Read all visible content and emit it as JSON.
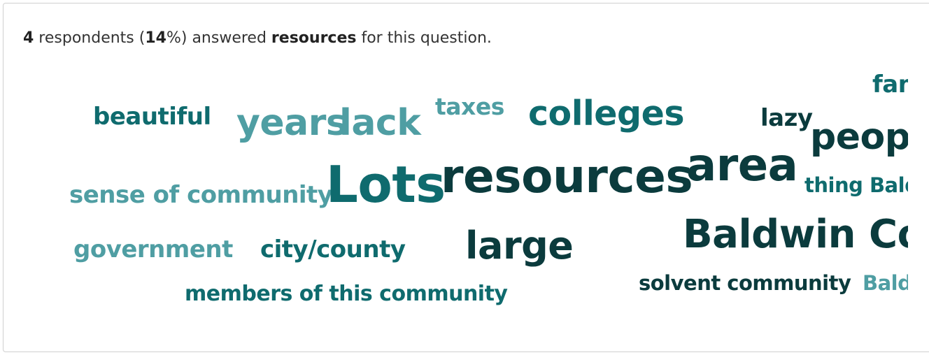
{
  "summary": {
    "count": "4",
    "text_respondents": " respondents (",
    "percent": "14",
    "text_answered": "%) answered ",
    "term": "resources",
    "text_tail": " for this question."
  },
  "colors": {
    "dark": "#0b3b3d",
    "mid": "#0f6b6e",
    "light": "#4f9ea3"
  },
  "cloud_words": [
    "fam",
    "beautiful",
    "years",
    "lack",
    "taxes",
    "colleges",
    "lazy",
    "peop",
    "area",
    "sense of community",
    "Lots",
    "resources",
    "thing Bald",
    "Baldwin Cou",
    "government",
    "city/county",
    "large",
    "solvent community",
    "Bald",
    "members of this community"
  ]
}
